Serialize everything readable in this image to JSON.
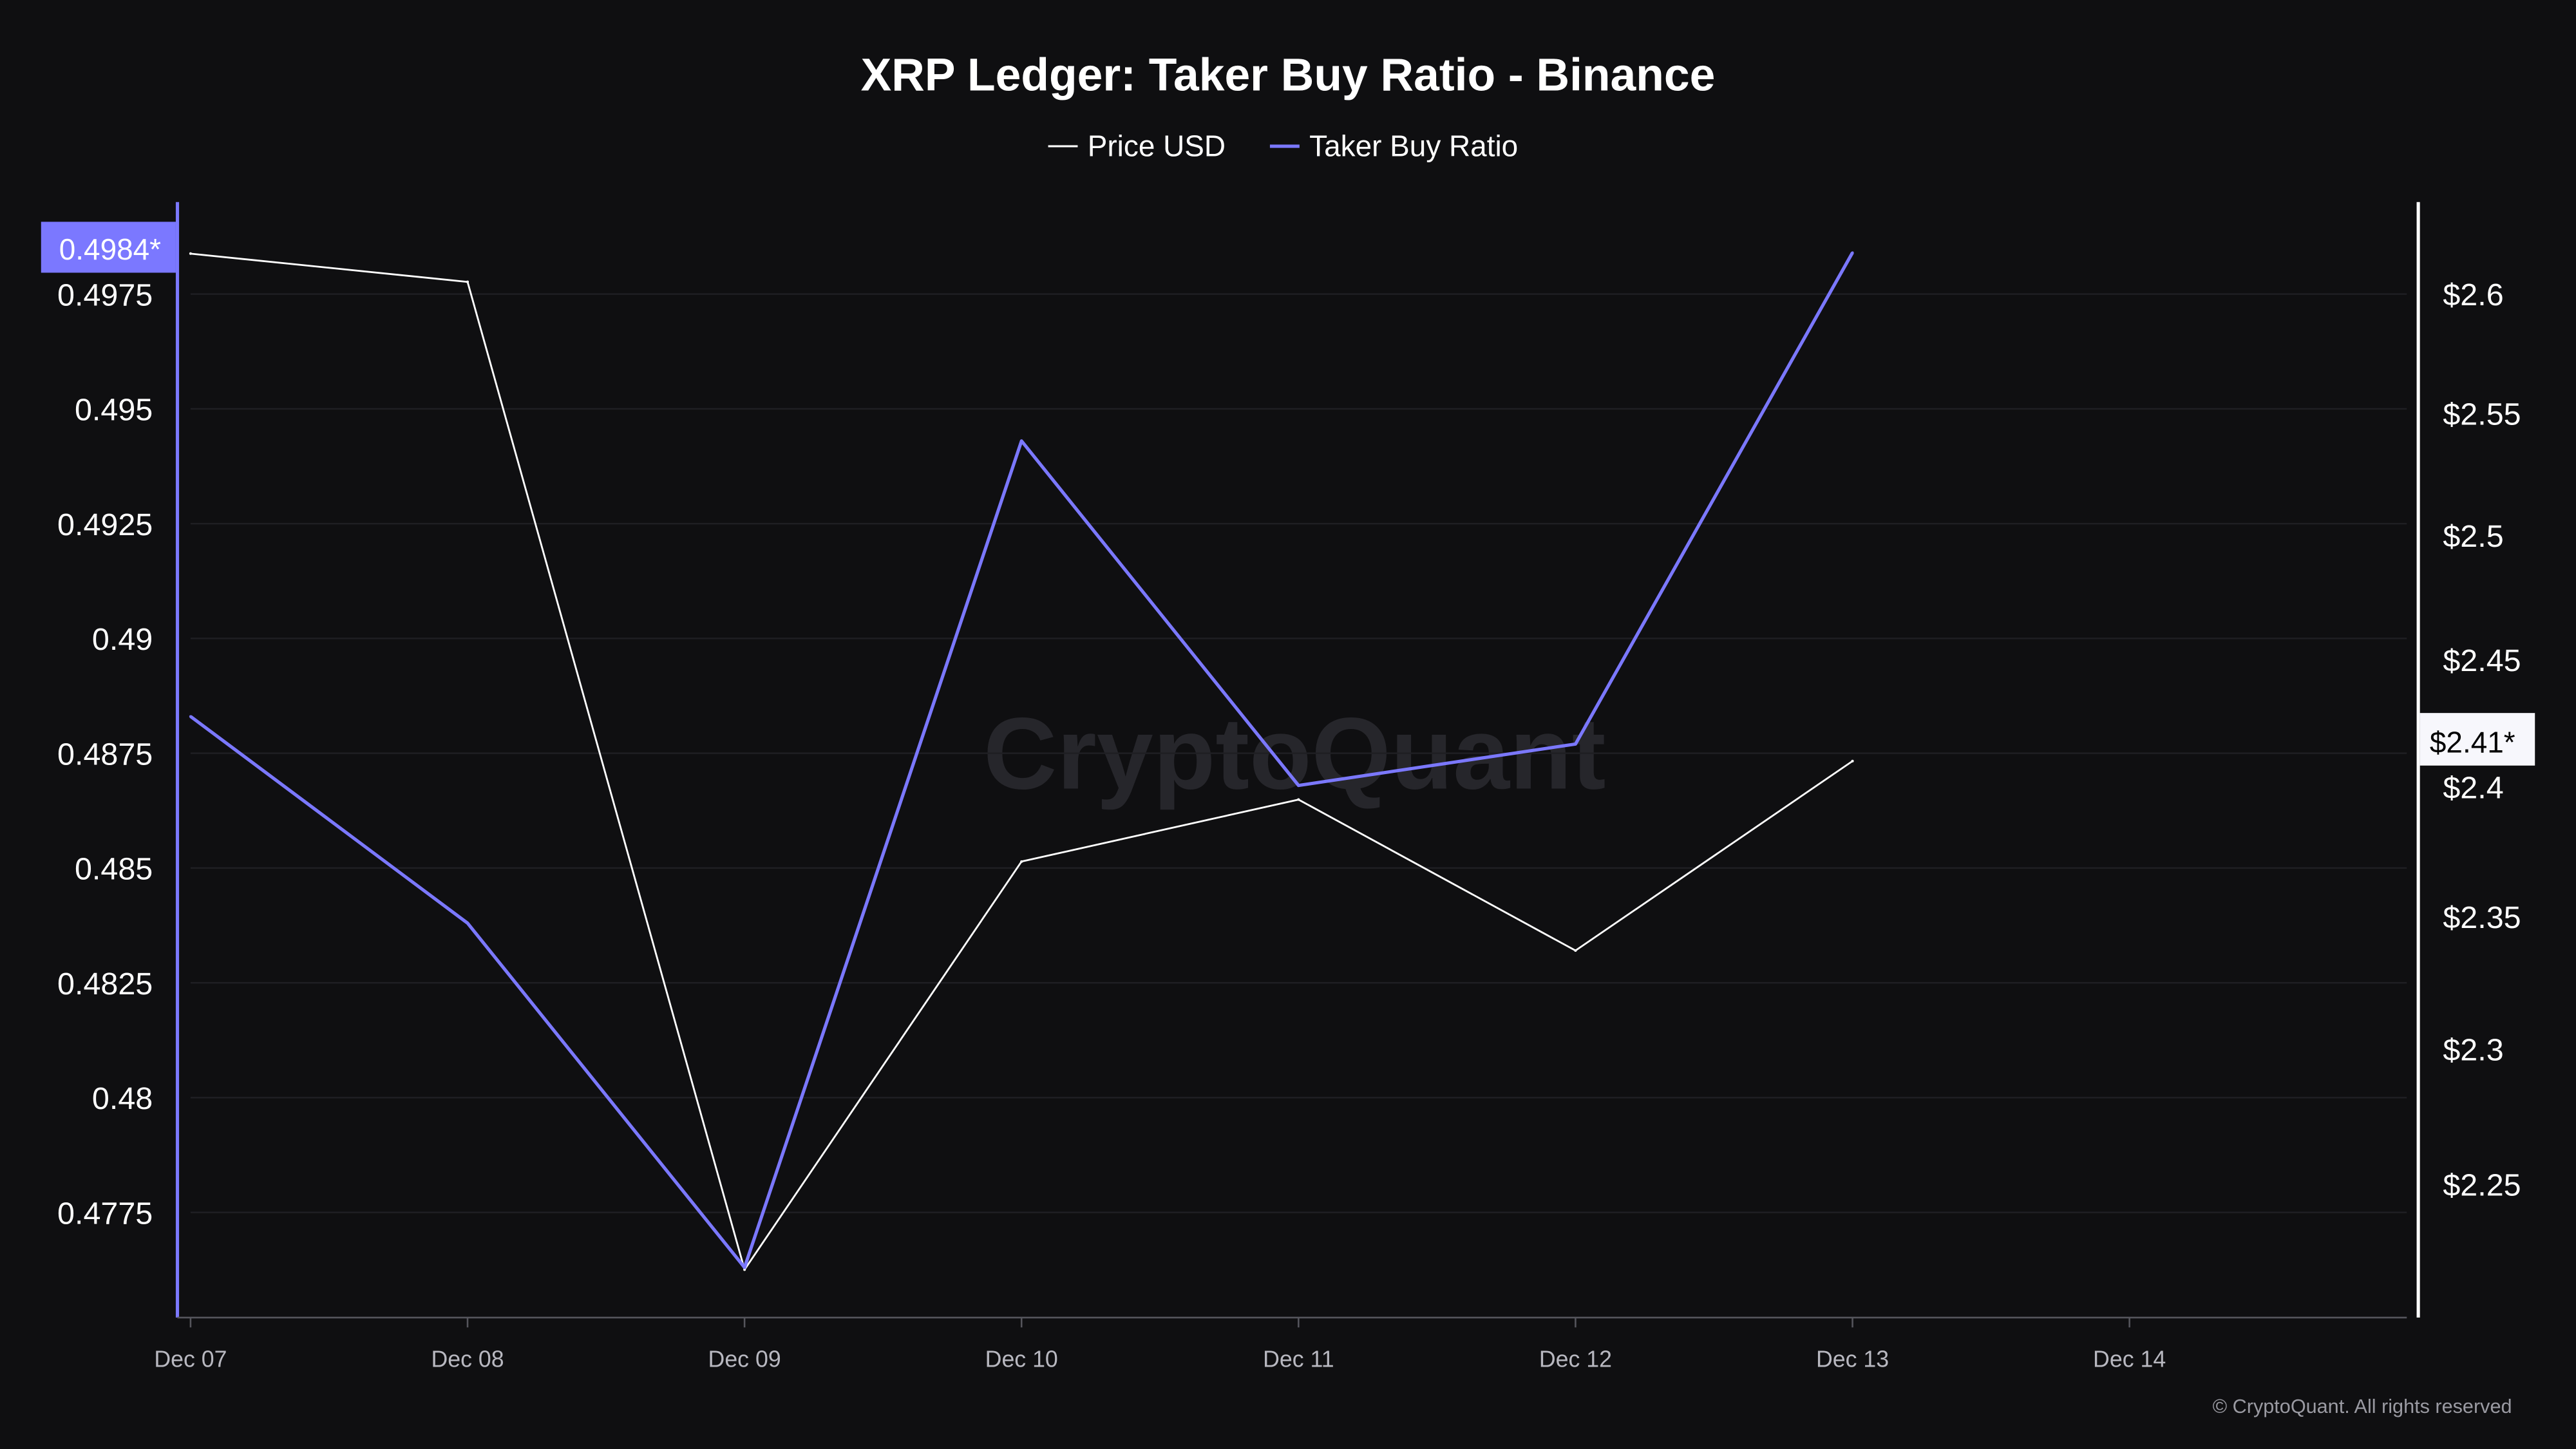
{
  "chart_data": {
    "type": "line",
    "title": "XRP Ledger: Taker Buy Ratio - Binance",
    "legend_position": "top",
    "x": [
      "Dec 07",
      "Dec 08",
      "Dec 09",
      "Dec 10",
      "Dec 11",
      "Dec 12",
      "Dec 13"
    ],
    "x_ticks": [
      "Dec 07",
      "Dec 08",
      "Dec 09",
      "Dec 10",
      "Dec 11",
      "Dec 12",
      "Dec 13",
      "Dec 14"
    ],
    "series": [
      {
        "name": "Price USD",
        "axis": "right",
        "color": "#ffffff",
        "values": [
          2.617,
          2.605,
          2.219,
          2.371,
          2.395,
          2.337,
          2.41
        ]
      },
      {
        "name": "Taker Buy Ratio",
        "axis": "left",
        "color": "#7b78ff",
        "values": [
          0.4883,
          0.4838,
          0.4763,
          0.4943,
          0.4868,
          0.4877,
          0.4984
        ]
      }
    ],
    "y_left": {
      "ticks": [
        "0.4975",
        "0.495",
        "0.4925",
        "0.49",
        "0.4875",
        "0.485",
        "0.4825",
        "0.48",
        "0.4775"
      ],
      "tick_values": [
        0.4975,
        0.495,
        0.4925,
        0.49,
        0.4875,
        0.485,
        0.4825,
        0.48,
        0.4775
      ],
      "range": [
        0.4752,
        0.4995
      ],
      "current_label": "0.4984*",
      "current_value": 0.4984
    },
    "y_right": {
      "scale": "log",
      "ticks": [
        "$2.6",
        "$2.55",
        "$2.5",
        "$2.45",
        "$2.4",
        "$2.35",
        "$2.3",
        "$2.25"
      ],
      "tick_values": [
        2.6,
        2.55,
        2.5,
        2.45,
        2.4,
        2.35,
        2.3,
        2.25
      ],
      "current_label": "$2.41*",
      "current_value": 2.41
    },
    "grid": true,
    "watermark": "CryptoQuant",
    "copyright": "© CryptoQuant. All rights reserved"
  }
}
